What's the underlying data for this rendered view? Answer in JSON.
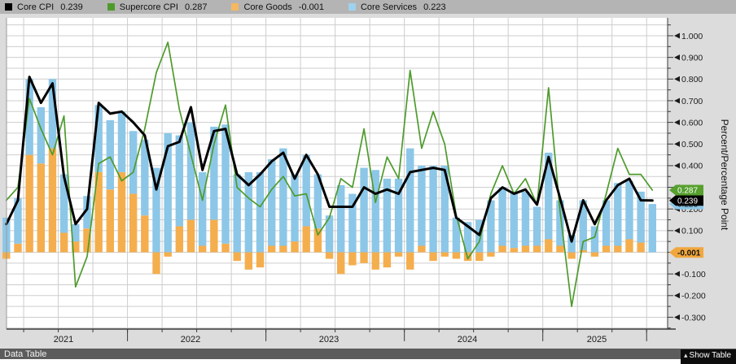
{
  "legend": {
    "items": [
      {
        "id": "core-cpi",
        "label": "Core CPI",
        "value": "0.239",
        "color": "#000000"
      },
      {
        "id": "supercore-cpi",
        "label": "Supercore CPI",
        "value": "0.287",
        "color": "#4e9b2c"
      },
      {
        "id": "core-goods",
        "label": "Core Goods",
        "value": "-0.001",
        "color": "#f5b860"
      },
      {
        "id": "core-services",
        "label": "Core Services",
        "value": "0.223",
        "color": "#9fd2ee"
      }
    ]
  },
  "footer": {
    "left_label": "Data Table",
    "right_label": "Show Table",
    "caret": "▴"
  },
  "chart_data": {
    "type": "bar",
    "subtype": "stacked-bars-with-lines",
    "title": "",
    "ylabel": "Percent/Percentage Point",
    "xlabel": "",
    "grid": true,
    "legend_position": "top",
    "ylim": [
      -0.355,
      1.085
    ],
    "yticks_major": [
      1.0,
      0.9,
      0.8,
      0.7,
      0.6,
      0.5,
      0.4,
      0.3,
      0.2,
      0.1,
      0.0,
      -0.1,
      -0.2,
      -0.3
    ],
    "ytick_minor_step": 0.05,
    "year_labels": [
      "2021",
      "2022",
      "2023",
      "2024",
      "2025"
    ],
    "x_monthly": [
      "2021-02",
      "2021-03",
      "2021-04",
      "2021-05",
      "2021-06",
      "2021-07",
      "2021-08",
      "2021-09",
      "2021-10",
      "2021-11",
      "2021-12",
      "2022-01",
      "2022-02",
      "2022-03",
      "2022-04",
      "2022-05",
      "2022-06",
      "2022-07",
      "2022-08",
      "2022-09",
      "2022-10",
      "2022-11",
      "2022-12",
      "2023-01",
      "2023-02",
      "2023-03",
      "2023-04",
      "2023-05",
      "2023-06",
      "2023-07",
      "2023-08",
      "2023-09",
      "2023-10",
      "2023-11",
      "2023-12",
      "2024-01",
      "2024-02",
      "2024-03",
      "2024-04",
      "2024-05",
      "2024-06",
      "2024-07",
      "2024-08",
      "2024-09",
      "2024-10",
      "2024-11",
      "2024-12",
      "2025-01",
      "2025-02",
      "2025-03",
      "2025-04",
      "2025-05",
      "2025-06",
      "2025-07",
      "2025-08",
      "2025-09",
      "2025-10"
    ],
    "series": [
      {
        "name": "Core Goods",
        "type": "bar",
        "color": "#f5ae4d",
        "stack": "contrib",
        "values": [
          -0.03,
          0.04,
          0.45,
          0.41,
          0.48,
          0.09,
          0.05,
          0.11,
          0.37,
          0.29,
          0.37,
          0.27,
          0.17,
          -0.1,
          -0.02,
          0.12,
          0.15,
          0.03,
          0.15,
          0.04,
          -0.04,
          -0.08,
          -0.07,
          0.03,
          0.03,
          0.05,
          0.12,
          0.11,
          -0.03,
          -0.1,
          -0.06,
          -0.05,
          -0.08,
          -0.07,
          -0.02,
          -0.08,
          0.03,
          -0.04,
          -0.02,
          -0.03,
          -0.04,
          -0.04,
          -0.02,
          0.03,
          0.02,
          0.03,
          0.03,
          0.06,
          0.03,
          -0.03,
          0.01,
          -0.02,
          0.03,
          0.03,
          0.06,
          0.045,
          -0.001
        ]
      },
      {
        "name": "Core Services",
        "type": "bar",
        "color": "#8cc7e8",
        "stack": "contrib",
        "values": [
          0.16,
          0.21,
          0.35,
          0.26,
          0.32,
          0.27,
          0.08,
          0.15,
          0.31,
          0.32,
          0.28,
          0.29,
          0.35,
          0.39,
          0.55,
          0.42,
          0.45,
          0.34,
          0.43,
          0.55,
          0.36,
          0.37,
          0.37,
          0.4,
          0.45,
          0.31,
          0.33,
          0.25,
          0.17,
          0.31,
          0.27,
          0.39,
          0.38,
          0.34,
          0.34,
          0.48,
          0.37,
          0.4,
          0.4,
          0.16,
          0.14,
          0.15,
          0.24,
          0.27,
          0.26,
          0.25,
          0.18,
          0.4,
          0.21,
          0.08,
          0.23,
          0.12,
          0.21,
          0.29,
          0.27,
          0.235,
          0.223
        ]
      },
      {
        "name": "Core CPI",
        "type": "line",
        "color": "#000000",
        "width": 3,
        "values": [
          0.13,
          0.24,
          0.81,
          0.69,
          0.78,
          0.35,
          0.13,
          0.2,
          0.69,
          0.64,
          0.65,
          0.6,
          0.54,
          0.29,
          0.49,
          0.51,
          0.67,
          0.38,
          0.56,
          0.57,
          0.36,
          0.31,
          0.36,
          0.42,
          0.46,
          0.34,
          0.45,
          0.36,
          0.21,
          0.21,
          0.21,
          0.3,
          0.27,
          0.29,
          0.27,
          0.37,
          0.38,
          0.39,
          0.38,
          0.16,
          0.12,
          0.08,
          0.25,
          0.3,
          0.27,
          0.29,
          0.22,
          0.44,
          0.25,
          0.05,
          0.24,
          0.13,
          0.24,
          0.31,
          0.34,
          0.24,
          0.239
        ]
      },
      {
        "name": "Supercore CPI",
        "type": "line",
        "color": "#4e9b2c",
        "width": 1.7,
        "values": [
          0.24,
          0.3,
          0.71,
          0.57,
          0.45,
          0.63,
          -0.16,
          -0.02,
          0.41,
          0.44,
          0.33,
          0.37,
          0.57,
          0.83,
          0.97,
          0.66,
          0.45,
          0.24,
          0.5,
          0.68,
          0.3,
          0.25,
          0.21,
          0.29,
          0.35,
          0.26,
          0.27,
          0.08,
          0.16,
          0.34,
          0.3,
          0.57,
          0.23,
          0.44,
          0.34,
          0.84,
          0.48,
          0.65,
          0.5,
          0.17,
          -0.03,
          0.05,
          0.27,
          0.4,
          0.27,
          0.34,
          0.22,
          0.76,
          0.19,
          -0.25,
          0.05,
          0.07,
          0.27,
          0.48,
          0.36,
          0.36,
          0.287
        ]
      }
    ],
    "axis_tags": [
      {
        "label": "0.287",
        "value": 0.287,
        "bg": "#56a02e",
        "fg": "#ffffff",
        "bold": false
      },
      {
        "label": "0.239",
        "value": 0.239,
        "bg": "#000000",
        "fg": "#ffffff",
        "bold": false
      },
      {
        "label": "0.223",
        "value": 0.223,
        "bg": "#8cc7e8",
        "fg": "#1a1a1a",
        "bold": false,
        "hidden_behind": "0.239"
      },
      {
        "label": "-0.001",
        "value": -0.001,
        "bg": "#f0a73e",
        "fg": "#111111",
        "bold": true
      }
    ],
    "colors": {
      "plot_bg": "#ffffff",
      "outer_bg": "#dcdcdc",
      "legend_bg": "#b4b4b4",
      "grid": "#cdcdcd",
      "axis": "#3a3a3a",
      "tick_label": "#1a1a1a"
    }
  }
}
